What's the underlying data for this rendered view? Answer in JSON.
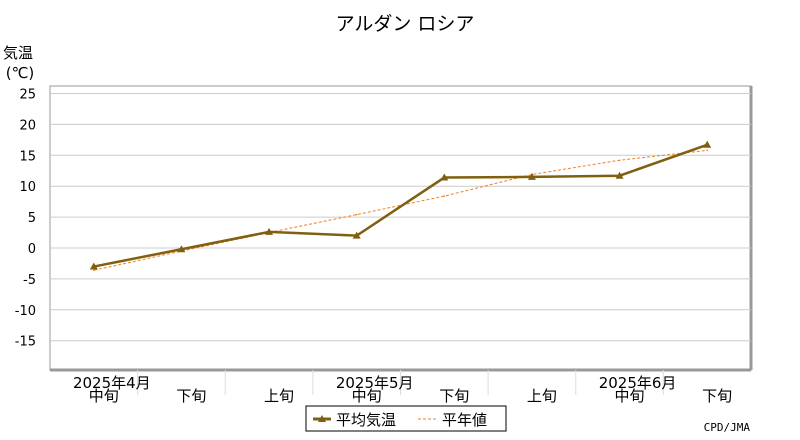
{
  "chart_data": {
    "type": "line",
    "title": "アルダン ロシア",
    "ylabel_line1": "気温",
    "ylabel_line2": "(℃)",
    "ylim": [
      -20,
      25
    ],
    "yticks": [
      25,
      20,
      15,
      10,
      5,
      0,
      -5,
      -10,
      -15
    ],
    "categories": [
      "中旬",
      "下旬",
      "上旬",
      "中旬",
      "下旬",
      "上旬",
      "中旬",
      "下旬"
    ],
    "month_labels": [
      {
        "label": "2025年4月",
        "index": 0
      },
      {
        "label": "2025年5月",
        "index": 3
      },
      {
        "label": "2025年6月",
        "index": 6
      }
    ],
    "series": [
      {
        "name": "平均気温",
        "values": [
          -3.0,
          -0.2,
          2.6,
          2.0,
          11.4,
          11.5,
          11.7,
          16.7
        ],
        "color": "#806010",
        "style": "solid-marker"
      },
      {
        "name": "平年値",
        "values": [
          -3.6,
          -0.5,
          2.5,
          5.4,
          8.4,
          11.9,
          14.2,
          15.8
        ],
        "color": "#f08020",
        "style": "dashed"
      }
    ],
    "grid": true,
    "legend": "bottom",
    "credit": "CPD/JMA"
  }
}
